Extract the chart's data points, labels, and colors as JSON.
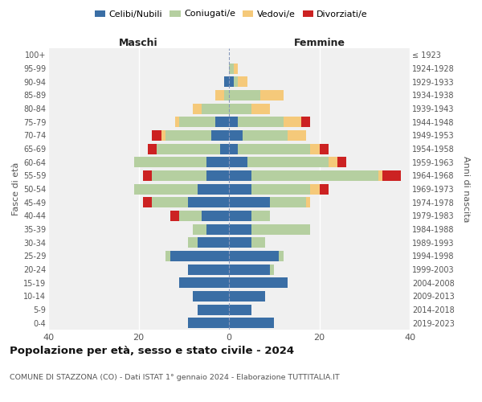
{
  "age_groups": [
    "0-4",
    "5-9",
    "10-14",
    "15-19",
    "20-24",
    "25-29",
    "30-34",
    "35-39",
    "40-44",
    "45-49",
    "50-54",
    "55-59",
    "60-64",
    "65-69",
    "70-74",
    "75-79",
    "80-84",
    "85-89",
    "90-94",
    "95-99",
    "100+"
  ],
  "birth_years": [
    "2019-2023",
    "2014-2018",
    "2009-2013",
    "2004-2008",
    "1999-2003",
    "1994-1998",
    "1989-1993",
    "1984-1988",
    "1979-1983",
    "1974-1978",
    "1969-1973",
    "1964-1968",
    "1959-1963",
    "1954-1958",
    "1949-1953",
    "1944-1948",
    "1939-1943",
    "1934-1938",
    "1929-1933",
    "1924-1928",
    "≤ 1923"
  ],
  "maschi_celibe": [
    9,
    7,
    8,
    11,
    9,
    13,
    7,
    5,
    6,
    9,
    7,
    5,
    5,
    2,
    4,
    3,
    0,
    0,
    1,
    0,
    0
  ],
  "maschi_coniugato": [
    0,
    0,
    0,
    0,
    0,
    1,
    2,
    3,
    5,
    8,
    14,
    12,
    16,
    14,
    10,
    8,
    6,
    1,
    0,
    0,
    0
  ],
  "maschi_vedovo": [
    0,
    0,
    0,
    0,
    0,
    0,
    0,
    0,
    0,
    0,
    0,
    0,
    0,
    0,
    1,
    1,
    2,
    2,
    0,
    0,
    0
  ],
  "maschi_divorziato": [
    0,
    0,
    0,
    0,
    0,
    0,
    0,
    0,
    2,
    2,
    0,
    2,
    0,
    2,
    2,
    0,
    0,
    0,
    0,
    0,
    0
  ],
  "femmine_celibe": [
    10,
    5,
    8,
    13,
    9,
    11,
    5,
    5,
    5,
    9,
    5,
    5,
    4,
    2,
    3,
    2,
    0,
    0,
    1,
    0,
    0
  ],
  "femmine_coniugato": [
    0,
    0,
    0,
    0,
    1,
    1,
    3,
    13,
    4,
    8,
    13,
    28,
    18,
    16,
    10,
    10,
    5,
    7,
    1,
    1,
    0
  ],
  "femmine_vedovo": [
    0,
    0,
    0,
    0,
    0,
    0,
    0,
    0,
    0,
    1,
    2,
    1,
    2,
    2,
    4,
    4,
    4,
    5,
    2,
    1,
    0
  ],
  "femmine_divorziato": [
    0,
    0,
    0,
    0,
    0,
    0,
    0,
    0,
    0,
    0,
    2,
    4,
    2,
    2,
    0,
    2,
    0,
    0,
    0,
    0,
    0
  ],
  "colors": {
    "celibe": "#3a6ea5",
    "coniugato": "#b5cfa0",
    "vedovo": "#f5c97a",
    "divorziato": "#cc2222"
  },
  "xlim": 40,
  "title": "Popolazione per età, sesso e stato civile - 2024",
  "subtitle": "COMUNE DI STAZZONA (CO) - Dati ISTAT 1° gennaio 2024 - Elaborazione TUTTITALIA.IT",
  "ylabel_left": "Fasce di età",
  "ylabel_right": "Anni di nascita",
  "xlabel_maschi": "Maschi",
  "xlabel_femmine": "Femmine",
  "legend_labels": [
    "Celibi/Nubili",
    "Coniugati/e",
    "Vedovi/e",
    "Divorziati/e"
  ],
  "bg_color": "#f0f0f0",
  "grid_color": "#ffffff",
  "text_color": "#555555",
  "title_color": "#111111"
}
